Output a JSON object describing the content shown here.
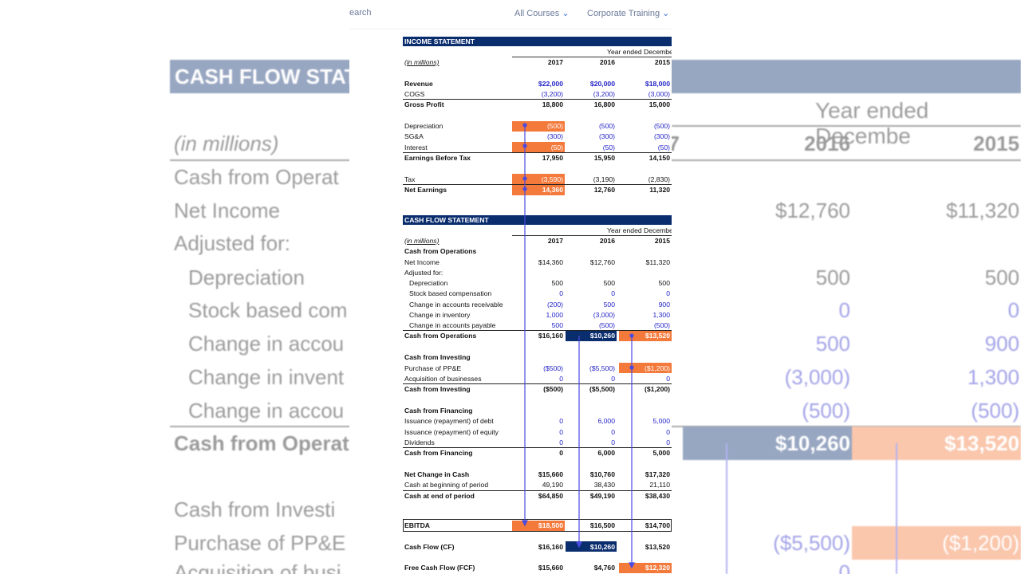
{
  "nav": {
    "search": "earch",
    "links": [
      "All Courses",
      "Corporate Training"
    ]
  },
  "background": {
    "title": "CASH FLOW STAT",
    "units": "(in millions)",
    "period": "Year ended Decembe",
    "years": [
      "7",
      "2016",
      "2015"
    ],
    "rows": [
      {
        "label": "Cash from Operat"
      },
      {
        "label": "Net Income",
        "values": [
          "$12,760",
          "$11,320"
        ]
      },
      {
        "label": "Adjusted for:"
      },
      {
        "label": "Depreciation",
        "values": [
          "500",
          "500"
        ]
      },
      {
        "label": "Stock based com",
        "values": [
          "0",
          "0"
        ],
        "value_color": "#2323c8"
      },
      {
        "label": "Change in accou",
        "values": [
          "500",
          "900"
        ],
        "value_color": "#2323c8"
      },
      {
        "label": "Change in invent",
        "values": [
          "(3,000)",
          "1,300"
        ],
        "value_color": "#2323c8"
      },
      {
        "label": "Change in accou",
        "values": [
          "(500)",
          "(500)"
        ],
        "value_color": "#2323c8"
      },
      {
        "label": "Cash from Operat",
        "values": [
          "$10,260",
          "$13,520"
        ],
        "bold": true,
        "highlight": [
          "#0a2d6e",
          "#f47a3c"
        ]
      },
      {
        "label": "Cash from Investi"
      },
      {
        "label": "Purchase of PP&E",
        "values": [
          "($5,500)",
          "($1,200)"
        ],
        "value_color": "#2323c8",
        "highlight": [
          null,
          "#f47a3c"
        ]
      },
      {
        "label": "Acquisition of busi",
        "values": [
          "0"
        ],
        "value_color": "#2323c8"
      }
    ]
  },
  "income_statement": {
    "title": "INCOME STATEMENT",
    "period": "Year ended Decembe",
    "units": "(in millions)",
    "years": [
      "2017",
      "2016",
      "2015"
    ],
    "groups": [
      [
        {
          "label": "Revenue",
          "values": [
            "$22,000",
            "$20,000",
            "$18,000"
          ],
          "bold": true,
          "value_color": "#2323c8"
        },
        {
          "label": "COGS",
          "values": [
            "(3,200)",
            "(3,200)",
            "(3,000)"
          ],
          "value_color": "#2323c8"
        },
        {
          "label": "Gross Profit",
          "values": [
            "18,800",
            "16,800",
            "15,000"
          ],
          "bold": true,
          "total": true
        }
      ],
      [
        {
          "label": "Depreciation",
          "values": [
            "(500)",
            "(500)",
            "(500)"
          ],
          "value_color": "#2323c8",
          "highlight": [
            "#f47a3c",
            null,
            null
          ]
        },
        {
          "label": "SG&A",
          "values": [
            "(300)",
            "(300)",
            "(300)"
          ],
          "value_color": "#2323c8"
        },
        {
          "label": "Interest",
          "values": [
            "(50)",
            "(50)",
            "(50)"
          ],
          "value_color": "#2323c8",
          "highlight": [
            "#f47a3c",
            null,
            null
          ]
        },
        {
          "label": "Earnings Before Tax",
          "values": [
            "17,950",
            "15,950",
            "14,150"
          ],
          "bold": true,
          "total": true
        }
      ],
      [
        {
          "label": "Tax",
          "values": [
            "(3,590)",
            "(3,190)",
            "(2,830)"
          ],
          "highlight": [
            "#f47a3c",
            null,
            null
          ]
        },
        {
          "label": "Net Earnings",
          "values": [
            "14,360",
            "12,760",
            "11,320"
          ],
          "bold": true,
          "total": true,
          "highlight": [
            "#f47a3c",
            null,
            null
          ]
        }
      ]
    ]
  },
  "cash_flow_statement": {
    "title": "CASH FLOW STATEMENT",
    "period": "Year ended Decembe",
    "units": "(in millions)",
    "years": [
      "2017",
      "2016",
      "2015"
    ],
    "groups": [
      [
        {
          "label": "Cash from Operations",
          "bold": true
        },
        {
          "label": "Net Income",
          "values": [
            "$14,360",
            "$12,760",
            "$11,320"
          ]
        },
        {
          "label": "Adjusted for:"
        },
        {
          "label": "Depreciation",
          "values": [
            "500",
            "500",
            "500"
          ],
          "indent": true
        },
        {
          "label": "Stock based compensation",
          "values": [
            "0",
            "0",
            "0"
          ],
          "indent": true,
          "value_color": "#2323c8"
        },
        {
          "label": "Change in accounts receivable",
          "values": [
            "(200)",
            "500",
            "900"
          ],
          "indent": true,
          "value_color": "#2323c8"
        },
        {
          "label": "Change in inventory",
          "values": [
            "1,000",
            "(3,000)",
            "1,300"
          ],
          "indent": true,
          "value_color": "#2323c8"
        },
        {
          "label": "Change in accounts payable",
          "values": [
            "500",
            "(500)",
            "(500)"
          ],
          "indent": true,
          "value_color": "#2323c8"
        },
        {
          "label": "Cash from Operations",
          "values": [
            "$16,160",
            "$10,260",
            "$13,520"
          ],
          "bold": true,
          "total": true,
          "highlight": [
            null,
            "#0a2d6e",
            "#f47a3c"
          ]
        }
      ],
      [
        {
          "label": "Cash from Investing",
          "bold": true
        },
        {
          "label": "Purchase of PP&E",
          "values": [
            "($500)",
            "($5,500)",
            "($1,200)"
          ],
          "value_color": "#2323c8",
          "highlight": [
            null,
            null,
            "#f47a3c"
          ]
        },
        {
          "label": "Acquisition of businesses",
          "values": [
            "0",
            "0",
            "0"
          ],
          "value_color": "#2323c8"
        },
        {
          "label": "Cash from Investing",
          "values": [
            "($500)",
            "($5,500)",
            "($1,200)"
          ],
          "bold": true,
          "total": true
        }
      ],
      [
        {
          "label": "Cash from Financing",
          "bold": true
        },
        {
          "label": "Issuance (repayment) of debt",
          "values": [
            "0",
            "6,000",
            "5,000"
          ],
          "value_color": "#2323c8"
        },
        {
          "label": "Issuance (repayment) of equity",
          "values": [
            "0",
            "0",
            "0"
          ],
          "value_color": "#2323c8"
        },
        {
          "label": "Dividends",
          "values": [
            "0",
            "0",
            "0"
          ],
          "value_color": "#2323c8"
        },
        {
          "label": "Cash from Financing",
          "values": [
            "0",
            "6,000",
            "5,000"
          ],
          "bold": true,
          "total": true
        }
      ],
      [
        {
          "label": "Net Change in Cash",
          "values": [
            "$15,660",
            "$10,760",
            "$17,320"
          ],
          "bold": true
        },
        {
          "label": "Cash at beginning of period",
          "values": [
            "49,190",
            "38,430",
            "21,110"
          ]
        },
        {
          "label": "Cash at end of period",
          "values": [
            "$64,850",
            "$49,190",
            "$38,430"
          ],
          "bold": true,
          "total": true
        }
      ]
    ]
  },
  "summary": [
    {
      "label": "EBITDA",
      "values": [
        "$18,500",
        "$16,500",
        "$14,700"
      ],
      "highlight": [
        "#f47a3c",
        null,
        null
      ]
    },
    {
      "label": "Cash Flow (CF)",
      "values": [
        "$16,160",
        "$10,260",
        "$13,520"
      ],
      "highlight": [
        null,
        "#0a2d6e",
        null
      ]
    },
    {
      "label": "Free Cash Flow (FCF)",
      "values": [
        "$15,660",
        "$4,760",
        "$12,320"
      ],
      "highlight": [
        null,
        null,
        "#f47a3c"
      ]
    }
  ]
}
